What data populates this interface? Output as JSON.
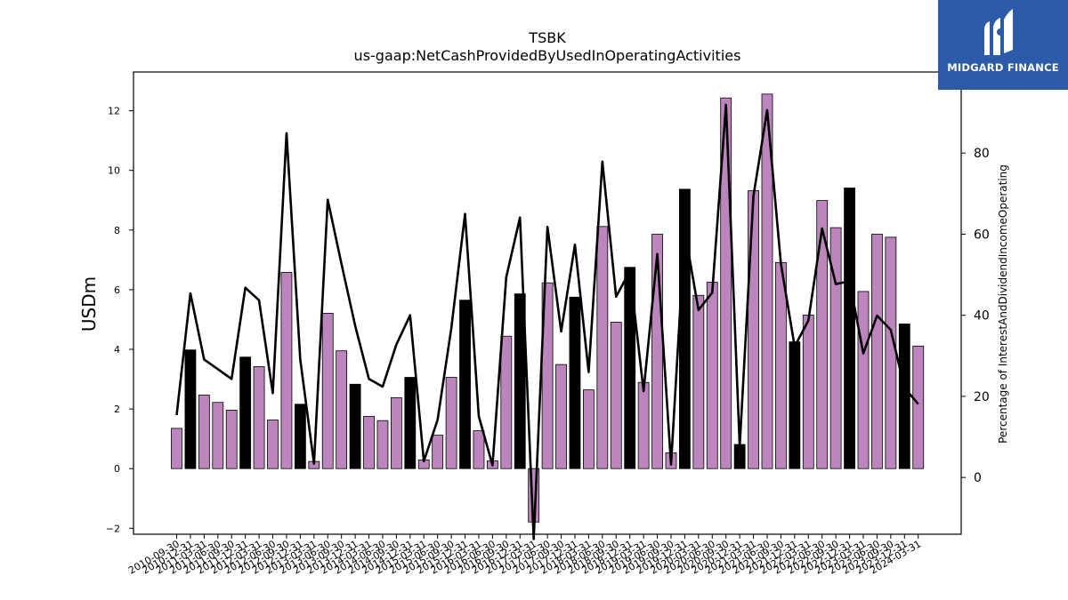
{
  "chart_data": {
    "type": "bar",
    "title": "TSBK",
    "subtitle": "us-gaap:NetCashProvidedByUsedInOperatingActivities",
    "ylabel": "USDm",
    "y2label": "Percentage of InterestAndDividendIncomeOperating",
    "ylim": [
      -2.2,
      13.3
    ],
    "y2lim": [
      -14,
      100
    ],
    "yticks": [
      -2,
      0,
      2,
      4,
      6,
      8,
      10,
      12
    ],
    "y2ticks": [
      0,
      20,
      40,
      60,
      80
    ],
    "categories": [
      "2010-09-30",
      "2010-12-31",
      "2011-03-31",
      "2011-06-30",
      "2011-09-30",
      "2011-12-31",
      "2012-03-31",
      "2012-06-30",
      "2012-09-30",
      "2012-12-31",
      "2013-03-31",
      "2013-06-30",
      "2013-09-30",
      "2013-12-31",
      "2014-03-31",
      "2014-06-30",
      "2014-09-30",
      "2014-12-31",
      "2015-03-31",
      "2015-06-30",
      "2015-09-30",
      "2015-12-31",
      "2016-03-31",
      "2016-06-30",
      "2016-09-30",
      "2016-12-31",
      "2017-03-31",
      "2017-06-30",
      "2017-09-30",
      "2017-12-31",
      "2018-03-31",
      "2018-06-30",
      "2018-09-30",
      "2018-12-31",
      "2019-03-31",
      "2019-06-30",
      "2019-09-30",
      "2019-12-31",
      "2020-03-31",
      "2020-06-30",
      "2020-09-30",
      "2020-12-31",
      "2021-03-31",
      "2021-06-30",
      "2021-09-30",
      "2021-12-31",
      "2022-03-31",
      "2022-06-30",
      "2022-09-30",
      "2022-12-31",
      "2023-03-31",
      "2023-06-30",
      "2023-09-30",
      "2023-12-31",
      "2024-03-31"
    ],
    "series": [
      {
        "values": [
          1.35,
          3.98,
          2.47,
          2.22,
          1.96,
          3.74,
          3.42,
          1.63,
          6.58,
          2.16,
          0.24,
          5.21,
          3.95,
          2.83,
          1.75,
          1.61,
          2.38,
          3.06,
          0.29,
          1.12,
          3.06,
          5.65,
          1.27,
          0.26,
          4.44,
          5.86,
          -1.79,
          6.23,
          3.49,
          5.75,
          2.64,
          8.12,
          4.91,
          6.75,
          2.89,
          7.86,
          0.53,
          9.37,
          5.81,
          6.25,
          12.43,
          0.81,
          9.32,
          12.56,
          6.91,
          4.25,
          5.15,
          8.99,
          8.08,
          9.41,
          5.94,
          7.86,
          7.76,
          4.85,
          4.11
        ],
        "highlight": [
          false,
          true,
          false,
          false,
          false,
          true,
          false,
          false,
          false,
          true,
          false,
          false,
          false,
          true,
          false,
          false,
          false,
          true,
          false,
          false,
          false,
          true,
          false,
          false,
          false,
          true,
          false,
          false,
          false,
          true,
          false,
          false,
          false,
          true,
          false,
          false,
          false,
          true,
          false,
          false,
          false,
          true,
          false,
          false,
          false,
          true,
          false,
          false,
          false,
          true,
          false,
          false,
          false,
          true,
          false
        ]
      },
      {
        "axis": "right",
        "type": "line",
        "values": [
          15.4,
          45.4,
          29.1,
          26.7,
          24.3,
          46.8,
          43.7,
          20.8,
          84.9,
          29.1,
          3.4,
          68.5,
          52.7,
          37.4,
          24.3,
          22.4,
          32.8,
          40.0,
          4.0,
          14.2,
          36.8,
          65.0,
          15.1,
          3.0,
          49.4,
          64.1,
          -15.2,
          61.8,
          36.0,
          57.4,
          26.0,
          77.9,
          44.6,
          50.9,
          21.3,
          55.1,
          3.2,
          60.8,
          41.3,
          45.6,
          91.9,
          7.7,
          69.4,
          90.6,
          52.7,
          32.3,
          38.7,
          61.4,
          47.7,
          48.4,
          30.6,
          39.9,
          36.4,
          22.1,
          18.1
        ]
      }
    ],
    "colors": {
      "bar": "#bd85bd",
      "bar_highlight": "#000000",
      "line": "#000000"
    }
  },
  "logo": {
    "text": "MIDGARD FINANCE",
    "icon": "midgard-m-logo-icon"
  }
}
